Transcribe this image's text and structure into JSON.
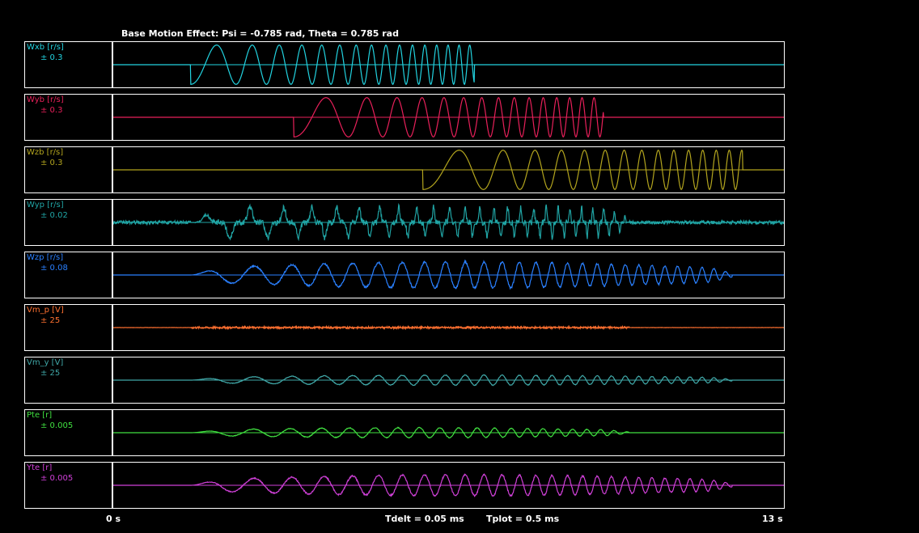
{
  "title": "Base Motion Effect: Psi = -0.785 rad, Theta = 0.785 rad",
  "footer": {
    "t_start": "0 s",
    "tdelt": "Tdelt = 0.05 ms",
    "tplot": "Tplot = 0.5 ms",
    "t_end": "13 s"
  },
  "chart_data": {
    "type": "line",
    "title": "Base Motion Effect: Psi = -0.785 rad, Theta = 0.785 rad",
    "xlabel": "",
    "xlim": [
      0,
      13
    ],
    "x_unit": "s",
    "grid": false,
    "channels": [
      {
        "name": "Wxb [r/s]",
        "range_label": "± 0.3",
        "ylim": [
          -0.3,
          0.3
        ],
        "color": "#22d3e0",
        "kind": "chirp",
        "start": 1.5,
        "end": 7.0,
        "amp": 0.28,
        "f0": 0.8,
        "f1": 5.0
      },
      {
        "name": "Wyb [r/s]",
        "range_label": "± 0.3",
        "ylim": [
          -0.3,
          0.3
        ],
        "color": "#e8205a",
        "kind": "chirp",
        "start": 3.5,
        "end": 9.5,
        "amp": 0.28,
        "f0": 0.6,
        "f1": 4.5
      },
      {
        "name": "Wzb [r/s]",
        "range_label": "± 0.3",
        "ylim": [
          -0.3,
          0.3
        ],
        "color": "#b3a51e",
        "kind": "chirp",
        "start": 6.0,
        "end": 12.2,
        "amp": 0.28,
        "f0": 0.5,
        "f1": 4.2
      },
      {
        "name": "Wyp [r/s]",
        "range_label": "± 0.02",
        "ylim": [
          -0.02,
          0.02
        ],
        "color": "#20a5a5",
        "kind": "spiky",
        "start": 1.5,
        "end": 10.0,
        "amp": 0.016,
        "f0": 0.8,
        "f1": 5.0
      },
      {
        "name": "Wzp [r/s]",
        "range_label": "± 0.08",
        "ylim": [
          -0.08,
          0.08
        ],
        "color": "#2a80ff",
        "kind": "wave",
        "start": 1.5,
        "end": 12.0,
        "amp": 0.05,
        "f0": 0.8,
        "f1": 4.5
      },
      {
        "name": "Vm_p [V]",
        "range_label": "± 25",
        "ylim": [
          -25,
          25
        ],
        "color": "#ff7030",
        "kind": "noise",
        "start": 1.5,
        "end": 10.0,
        "amp": 1.2,
        "f0": 6,
        "f1": 6
      },
      {
        "name": "Vm_y [V]",
        "range_label": "± 25",
        "ylim": [
          -25,
          25
        ],
        "color": "#40a8a8",
        "kind": "wave",
        "start": 1.5,
        "end": 12.0,
        "amp": 6,
        "f0": 0.8,
        "f1": 4.5
      },
      {
        "name": "Pte [r]",
        "range_label": "± 0.005",
        "ylim": [
          -0.005,
          0.005
        ],
        "color": "#40e040",
        "kind": "wave",
        "start": 1.5,
        "end": 10.0,
        "amp": 0.0012,
        "f0": 0.8,
        "f1": 4.0
      },
      {
        "name": "Yte [r]",
        "range_label": "± 0.005",
        "ylim": [
          -0.005,
          0.005
        ],
        "color": "#d040d8",
        "kind": "wave",
        "start": 1.5,
        "end": 12.0,
        "amp": 0.0025,
        "f0": 0.8,
        "f1": 4.5
      }
    ]
  }
}
